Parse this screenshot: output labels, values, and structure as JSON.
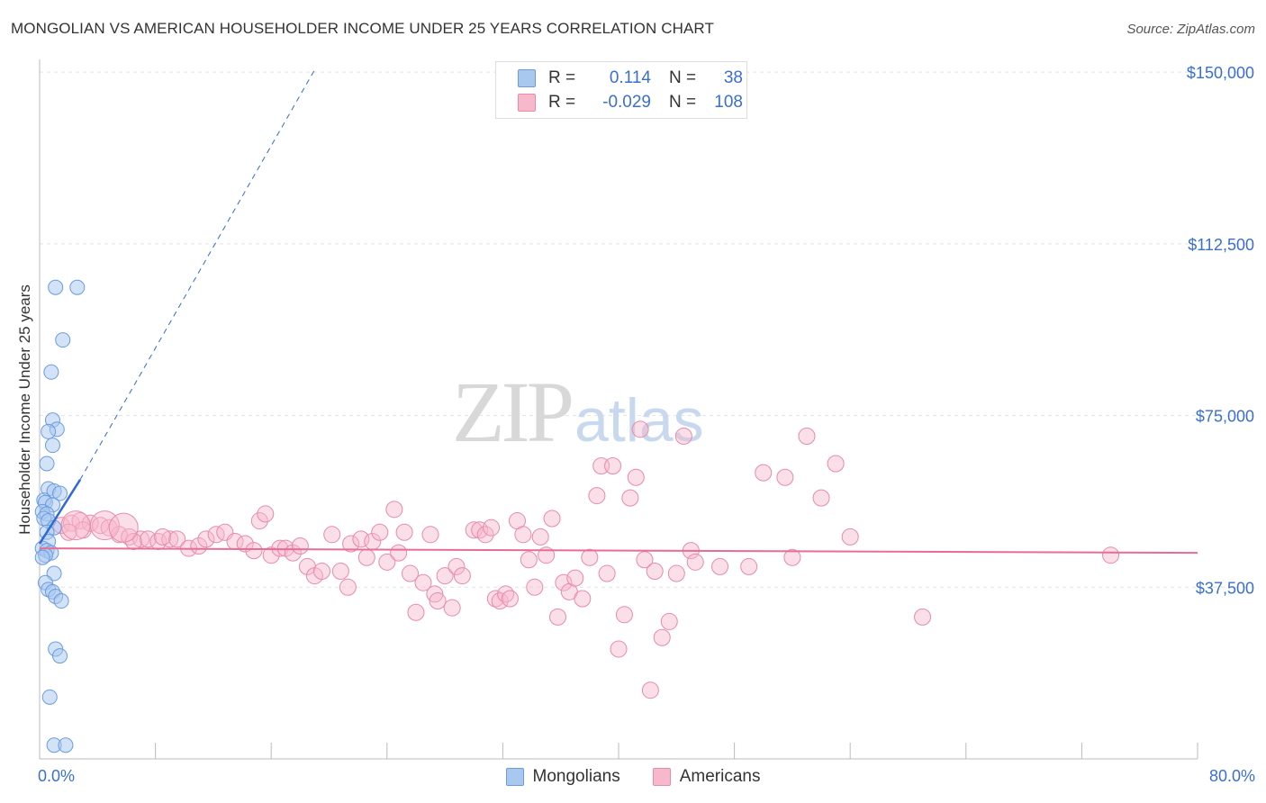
{
  "title": "MONGOLIAN VS AMERICAN HOUSEHOLDER INCOME UNDER 25 YEARS CORRELATION CHART",
  "source": "Source: ZipAtlas.com",
  "watermark": {
    "zip": "ZIP",
    "atlas": "atlas"
  },
  "legend": {
    "r_label": "R =",
    "n_label": "N =",
    "rows": [
      {
        "name": "Mongolians",
        "r": "0.114",
        "n": "38",
        "fill": "#a8c8f0",
        "stroke": "#6a9be0"
      },
      {
        "name": "Americans",
        "r": "-0.029",
        "n": "108",
        "fill": "#f7b8cc",
        "stroke": "#e88aa8"
      }
    ]
  },
  "colors": {
    "blue_point_fill": "#a8c8f0",
    "blue_point_stroke": "#6a9be0",
    "blue_line": "#2f6ad6",
    "pink_point_fill": "#f7b8cc",
    "pink_point_stroke": "#e88aa8",
    "pink_line": "#e86c96",
    "axis_text": "#3a6fd0",
    "grid": "#e4e4e4"
  },
  "chart_data": {
    "type": "scatter",
    "title": "MONGOLIAN VS AMERICAN HOUSEHOLDER INCOME UNDER 25 YEARS CORRELATION CHART",
    "xlabel": "",
    "ylabel": "Householder Income Under 25 years",
    "xlim": [
      0,
      80
    ],
    "ylim": [
      0,
      152000
    ],
    "x_tick_labels": {
      "min": "0.0%",
      "max": "80.0%"
    },
    "y_ticks": [
      {
        "value": 37500,
        "label": "$37,500"
      },
      {
        "value": 75000,
        "label": "$75,000"
      },
      {
        "value": 112500,
        "label": "$112,500"
      },
      {
        "value": 150000,
        "label": "$150,000"
      }
    ],
    "series": [
      {
        "name": "Mongolians",
        "r": 0.114,
        "n": 38,
        "trend": {
          "solid": [
            [
              0.0,
              47000
            ],
            [
              2.8,
              61000
            ]
          ],
          "dashed": [
            [
              2.8,
              61000
            ],
            [
              19.0,
              150500
            ]
          ]
        },
        "points": [
          [
            1.1,
            103000
          ],
          [
            2.6,
            103000
          ],
          [
            1.6,
            91500
          ],
          [
            0.8,
            84500
          ],
          [
            0.9,
            74000
          ],
          [
            1.2,
            72000
          ],
          [
            0.6,
            71500
          ],
          [
            0.9,
            68500
          ],
          [
            0.5,
            64500
          ],
          [
            0.6,
            59000
          ],
          [
            1.0,
            58500
          ],
          [
            1.4,
            58000
          ],
          [
            0.3,
            56500
          ],
          [
            0.4,
            56000
          ],
          [
            0.9,
            55500
          ],
          [
            0.2,
            54000
          ],
          [
            0.5,
            53500
          ],
          [
            0.3,
            52500
          ],
          [
            0.6,
            52000
          ],
          [
            1.0,
            50500
          ],
          [
            0.5,
            49500
          ],
          [
            0.6,
            47500
          ],
          [
            0.2,
            46000
          ],
          [
            0.5,
            45500
          ],
          [
            0.8,
            45000
          ],
          [
            0.4,
            44500
          ],
          [
            0.2,
            44000
          ],
          [
            1.0,
            40500
          ],
          [
            0.4,
            38500
          ],
          [
            0.6,
            37000
          ],
          [
            0.9,
            36500
          ],
          [
            1.1,
            35500
          ],
          [
            1.5,
            34500
          ],
          [
            1.1,
            24000
          ],
          [
            1.4,
            22500
          ],
          [
            0.7,
            13500
          ],
          [
            1.0,
            3000
          ],
          [
            1.8,
            3000
          ]
        ]
      },
      {
        "name": "Americans",
        "r": -0.029,
        "n": 108,
        "trend": {
          "solid": [
            [
              0.0,
              46000
            ],
            [
              80.0,
              45000
            ]
          ]
        },
        "points": [
          [
            1.5,
            51000
          ],
          [
            2.2,
            51500
          ],
          [
            2.8,
            52000
          ],
          [
            3.5,
            51500
          ],
          [
            4.2,
            51000
          ],
          [
            4.8,
            50500
          ],
          [
            3.0,
            50000
          ],
          [
            2.0,
            49500
          ],
          [
            5.5,
            49000
          ],
          [
            6.2,
            48500
          ],
          [
            7.0,
            48000
          ],
          [
            6.5,
            47500
          ],
          [
            7.5,
            48000
          ],
          [
            8.2,
            47500
          ],
          [
            9.0,
            48000
          ],
          [
            8.5,
            48500
          ],
          [
            9.5,
            48000
          ],
          [
            10.3,
            46000
          ],
          [
            11.0,
            46500
          ],
          [
            11.5,
            48000
          ],
          [
            12.2,
            49000
          ],
          [
            12.8,
            49500
          ],
          [
            13.5,
            47500
          ],
          [
            14.2,
            47000
          ],
          [
            14.8,
            45500
          ],
          [
            15.2,
            52000
          ],
          [
            15.6,
            53500
          ],
          [
            16.0,
            44500
          ],
          [
            16.6,
            46000
          ],
          [
            17.0,
            46000
          ],
          [
            17.5,
            45000
          ],
          [
            18.0,
            46500
          ],
          [
            18.5,
            42000
          ],
          [
            19.0,
            40000
          ],
          [
            19.5,
            41000
          ],
          [
            20.2,
            49000
          ],
          [
            20.8,
            41000
          ],
          [
            21.3,
            37500
          ],
          [
            21.5,
            47000
          ],
          [
            22.2,
            48000
          ],
          [
            22.6,
            44000
          ],
          [
            23.0,
            47500
          ],
          [
            23.5,
            49500
          ],
          [
            24.0,
            43000
          ],
          [
            24.5,
            54500
          ],
          [
            24.8,
            45000
          ],
          [
            25.2,
            49500
          ],
          [
            25.6,
            40500
          ],
          [
            26.0,
            32000
          ],
          [
            26.5,
            38500
          ],
          [
            27.0,
            49000
          ],
          [
            27.3,
            36000
          ],
          [
            27.5,
            34500
          ],
          [
            28.0,
            40000
          ],
          [
            28.5,
            33000
          ],
          [
            28.8,
            42000
          ],
          [
            29.2,
            40000
          ],
          [
            30.0,
            50000
          ],
          [
            30.4,
            50000
          ],
          [
            30.8,
            49000
          ],
          [
            31.2,
            50500
          ],
          [
            31.5,
            35000
          ],
          [
            31.8,
            34500
          ],
          [
            32.2,
            36000
          ],
          [
            32.5,
            35000
          ],
          [
            33.0,
            52000
          ],
          [
            33.4,
            49000
          ],
          [
            33.8,
            43500
          ],
          [
            34.2,
            37500
          ],
          [
            34.6,
            48500
          ],
          [
            35.0,
            44500
          ],
          [
            35.4,
            52500
          ],
          [
            35.8,
            31000
          ],
          [
            36.2,
            38500
          ],
          [
            36.6,
            36500
          ],
          [
            37.0,
            39500
          ],
          [
            37.5,
            35000
          ],
          [
            38.0,
            44000
          ],
          [
            38.5,
            57500
          ],
          [
            38.8,
            64000
          ],
          [
            39.2,
            40500
          ],
          [
            39.6,
            64000
          ],
          [
            40.0,
            24000
          ],
          [
            40.4,
            31500
          ],
          [
            40.8,
            57000
          ],
          [
            41.2,
            61500
          ],
          [
            41.5,
            72000
          ],
          [
            41.8,
            43500
          ],
          [
            42.2,
            15000
          ],
          [
            42.5,
            41000
          ],
          [
            43.0,
            26500
          ],
          [
            43.5,
            30000
          ],
          [
            44.0,
            40500
          ],
          [
            44.5,
            70500
          ],
          [
            45.0,
            45500
          ],
          [
            45.3,
            43000
          ],
          [
            47.0,
            42000
          ],
          [
            49.0,
            42000
          ],
          [
            50.0,
            62500
          ],
          [
            51.5,
            61500
          ],
          [
            52.0,
            44000
          ],
          [
            53.0,
            70500
          ],
          [
            54.0,
            57000
          ],
          [
            55.0,
            64500
          ],
          [
            56.0,
            48500
          ],
          [
            61.0,
            31000
          ],
          [
            74.0,
            44500
          ]
        ],
        "large_points": [
          [
            2.5,
            51000
          ],
          [
            4.5,
            51000
          ],
          [
            5.8,
            50500
          ]
        ]
      }
    ]
  }
}
